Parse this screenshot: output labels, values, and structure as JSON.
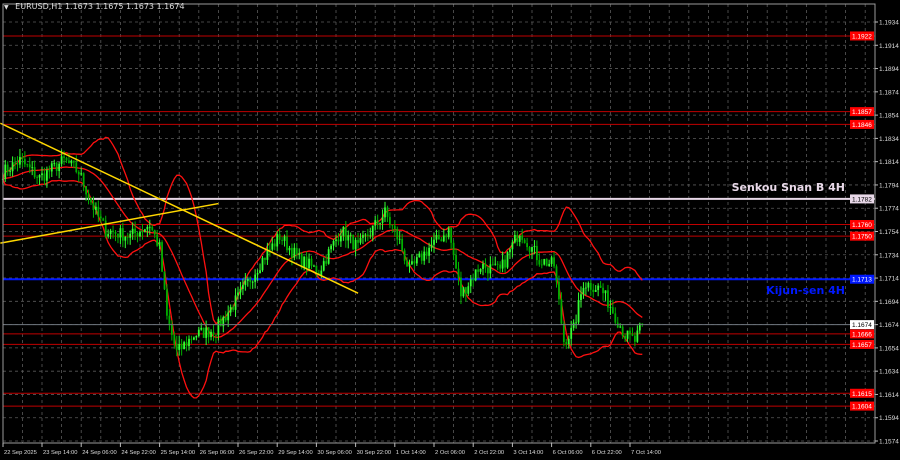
{
  "title": {
    "symbol": "EURUSD,H1",
    "ohlc": "1.1673 1.1675 1.1673 1.1674"
  },
  "colors": {
    "background": "#000000",
    "grid": "#5a5a5a",
    "candle_up": "#33ff33",
    "candle_down": "#00b000",
    "bands": "#ff1010",
    "trendline": "#ffd700",
    "support_resistance": "#c00000",
    "kijun": "#0018ff",
    "senkou": "#e8d8e8"
  },
  "chart_data": {
    "type": "candlestick",
    "symbol": "EURUSD",
    "timeframe": "H1",
    "ylim": [
      1.1566,
      1.1945
    ],
    "grid": true,
    "y_ticks": [
      "1.1934",
      "1.1914",
      "1.1894",
      "1.1874",
      "1.1854",
      "1.1834",
      "1.1814",
      "1.1794",
      "1.1774",
      "1.1754",
      "1.1734",
      "1.1714",
      "1.1694",
      "1.1674",
      "1.1654",
      "1.1634",
      "1.1614",
      "1.1594",
      "1.1574"
    ],
    "x_ticks": [
      {
        "label": "22 Sep 2025",
        "time": "2025-09-22 22:00"
      },
      {
        "label": "23 Sep 14:00",
        "time": "2025-09-23 14:00"
      },
      {
        "label": "24 Sep 06:00",
        "time": "2025-09-24 06:00"
      },
      {
        "label": "24 Sep 22:00",
        "time": "2025-09-24 22:00"
      },
      {
        "label": "25 Sep 14:00",
        "time": "2025-09-25 14:00"
      },
      {
        "label": "26 Sep 06:00",
        "time": "2025-09-26 06:00"
      },
      {
        "label": "26 Sep 22:00",
        "time": "2025-09-26 22:00"
      },
      {
        "label": "29 Sep 14:00",
        "time": "2025-09-29 14:00"
      },
      {
        "label": "30 Sep 06:00",
        "time": "2025-09-30 06:00"
      },
      {
        "label": "30 Sep 22:00",
        "time": "2025-09-30 22:00"
      },
      {
        "label": "1 Oct 14:00",
        "time": "2025-10-01 14:00"
      },
      {
        "label": "2 Oct 06:00",
        "time": "2025-10-02 06:00"
      },
      {
        "label": "2 Oct 22:00",
        "time": "2025-10-02 22:00"
      },
      {
        "label": "3 Oct 14:00",
        "time": "2025-10-03 14:00"
      },
      {
        "label": "6 Oct 06:00",
        "time": "2025-10-06 06:00"
      },
      {
        "label": "6 Oct 22:00",
        "time": "2025-10-06 22:00"
      },
      {
        "label": "7 Oct 14:00",
        "time": "2025-10-07 14:00"
      }
    ],
    "price_path": [
      [
        "2025-09-22 22:00",
        1.1805
      ],
      [
        "2025-09-23 05:00",
        1.1815
      ],
      [
        "2025-09-23 13:00",
        1.18
      ],
      [
        "2025-09-23 23:00",
        1.1815
      ],
      [
        "2025-09-24 05:00",
        1.1805
      ],
      [
        "2025-09-24 12:00",
        1.177
      ],
      [
        "2025-09-24 16:00",
        1.1755
      ],
      [
        "2025-09-25 02:00",
        1.175
      ],
      [
        "2025-09-25 10:00",
        1.176
      ],
      [
        "2025-09-25 14:00",
        1.174
      ],
      [
        "2025-09-25 17:00",
        1.168
      ],
      [
        "2025-09-25 21:00",
        1.165
      ],
      [
        "2025-09-26 04:00",
        1.1665
      ],
      [
        "2025-09-26 13:00",
        1.167
      ],
      [
        "2025-09-26 23:00",
        1.17
      ],
      [
        "2025-09-29 08:00",
        1.173
      ],
      [
        "2025-09-29 15:00",
        1.175
      ],
      [
        "2025-09-29 23:00",
        1.173
      ],
      [
        "2025-09-30 07:00",
        1.172
      ],
      [
        "2025-09-30 16:00",
        1.1755
      ],
      [
        "2025-09-30 23:00",
        1.174
      ],
      [
        "2025-10-01 10:00",
        1.177
      ],
      [
        "2025-10-01 16:00",
        1.1745
      ],
      [
        "2025-10-01 20:00",
        1.172
      ],
      [
        "2025-10-02 04:00",
        1.174
      ],
      [
        "2025-10-02 12:00",
        1.1755
      ],
      [
        "2025-10-02 17:00",
        1.17
      ],
      [
        "2025-10-03 01:00",
        1.1725
      ],
      [
        "2025-10-03 09:00",
        1.172
      ],
      [
        "2025-10-03 17:00",
        1.1755
      ],
      [
        "2025-10-06 01:00",
        1.173
      ],
      [
        "2025-10-06 07:00",
        1.1725
      ],
      [
        "2025-10-06 11:00",
        1.166
      ],
      [
        "2025-10-06 15:00",
        1.167
      ],
      [
        "2025-10-06 19:00",
        1.171
      ],
      [
        "2025-10-07 02:00",
        1.1705
      ],
      [
        "2025-10-07 06:00",
        1.169
      ],
      [
        "2025-10-07 12:00",
        1.1665
      ],
      [
        "2025-10-07 16:00",
        1.166
      ],
      [
        "2025-10-07 19:00",
        1.1674
      ]
    ],
    "indicators": [
      {
        "type": "bollinger_bands",
        "period": 20,
        "deviation": 2
      }
    ],
    "horizontal_levels": [
      {
        "price": 1.1922,
        "label": "1.1922",
        "kind": "resistance"
      },
      {
        "price": 1.1857,
        "label": "1.1857",
        "kind": "resistance"
      },
      {
        "price": 1.1846,
        "label": "1.1846",
        "kind": "resistance"
      },
      {
        "price": 1.1782,
        "label": "1.1782",
        "kind": "senkou",
        "name": "Senkou Snan B 4H"
      },
      {
        "price": 1.176,
        "label": "1.1760",
        "kind": "resistance"
      },
      {
        "price": 1.175,
        "label": "1.1750",
        "kind": "resistance"
      },
      {
        "price": 1.1713,
        "label": "1.1713",
        "kind": "kijun",
        "name": "Kijun-sen 4H"
      },
      {
        "price": 1.1666,
        "label": "1.1666",
        "kind": "support"
      },
      {
        "price": 1.1657,
        "label": "1.1657",
        "kind": "support"
      },
      {
        "price": 1.1615,
        "label": "1.1615",
        "kind": "support"
      },
      {
        "price": 1.1604,
        "label": "1.1604",
        "kind": "support"
      }
    ],
    "current_price": {
      "price": 1.1674,
      "label": "1.1674"
    },
    "trendlines": [
      {
        "from": [
          "2025-09-22 21:00",
          1.1847
        ],
        "to": [
          "2025-09-30 23:00",
          1.1701
        ]
      },
      {
        "from": [
          "2025-09-22 21:00",
          1.1744
        ],
        "to": [
          "2025-09-26 14:00",
          1.1778
        ]
      }
    ]
  }
}
